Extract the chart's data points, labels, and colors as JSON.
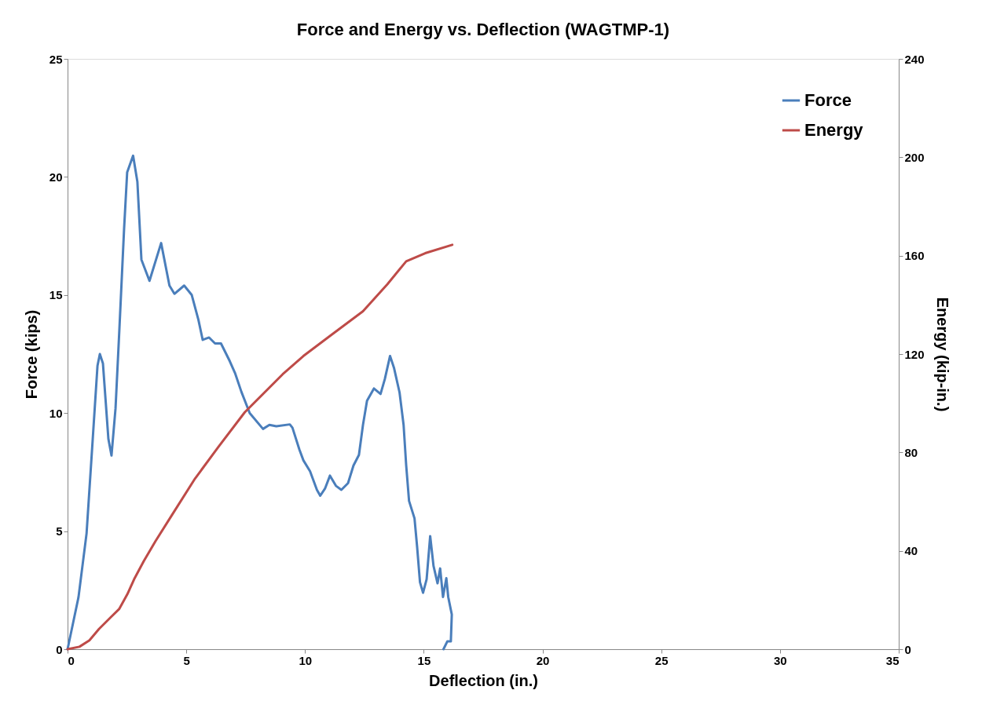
{
  "chart_data": {
    "type": "line",
    "title": "Force and Energy vs. Deflection (WAGTMP-1)",
    "xlabel": "Deflection (in.)",
    "ylabel": "Force (kips)",
    "y2label": "Energy (kip-in.)",
    "xlim": [
      0,
      35
    ],
    "xticks": [
      0,
      5,
      10,
      15,
      20,
      25,
      30,
      35
    ],
    "ylim": [
      0,
      25
    ],
    "yticks": [
      0,
      5,
      10,
      15,
      20,
      25
    ],
    "y2lim": [
      0,
      240
    ],
    "y2ticks": [
      0,
      40,
      80,
      120,
      160,
      200,
      240
    ],
    "grid": false,
    "legend": "top right",
    "series": [
      {
        "name": "Force",
        "color": "#4a7ebb",
        "x": [
          0,
          0.46,
          0.8,
          1.06,
          1.26,
          1.36,
          1.49,
          1.72,
          1.85,
          2.02,
          2.18,
          2.38,
          2.51,
          2.76,
          2.94,
          3.11,
          3.45,
          3.94,
          4.29,
          4.5,
          4.91,
          5.23,
          5.51,
          5.69,
          5.96,
          6.21,
          6.46,
          6.83,
          7.05,
          7.32,
          7.67,
          8.23,
          8.5,
          8.79,
          9.36,
          9.47,
          9.76,
          9.93,
          10.21,
          10.5,
          10.64,
          10.84,
          11.05,
          11.3,
          11.53,
          11.81,
          12.04,
          12.27,
          12.44,
          12.61,
          12.9,
          13.18,
          13.36,
          13.58,
          13.75,
          13.98,
          14.15,
          14.26,
          14.38,
          14.61,
          14.72,
          14.84,
          14.97,
          15.12,
          15.27,
          15.41,
          15.58,
          15.69,
          15.81,
          15.95,
          16.03,
          16.18,
          16.14,
          15.99,
          15.83
        ],
        "values": [
          0,
          2.2,
          4.9,
          8.9,
          12.0,
          12.5,
          12.1,
          8.9,
          8.2,
          10.2,
          13.5,
          17.8,
          20.2,
          20.9,
          19.8,
          16.5,
          15.6,
          17.2,
          15.4,
          15.05,
          15.4,
          15.0,
          13.95,
          13.1,
          13.2,
          12.95,
          12.95,
          12.2,
          11.7,
          10.9,
          10.0,
          9.33,
          9.5,
          9.44,
          9.52,
          9.38,
          8.46,
          8.0,
          7.54,
          6.75,
          6.5,
          6.8,
          7.35,
          6.92,
          6.75,
          7.03,
          7.78,
          8.23,
          9.5,
          10.52,
          11.04,
          10.81,
          11.44,
          12.42,
          11.9,
          10.87,
          9.5,
          7.78,
          6.28,
          5.54,
          4.33,
          2.84,
          2.39,
          2.96,
          4.79,
          3.53,
          2.79,
          3.42,
          2.21,
          3.01,
          2.21,
          1.47,
          0.33,
          0.33,
          0
        ]
      },
      {
        "name": "Energy",
        "color": "#be4b48",
        "axis": "y2",
        "x": [
          0,
          0.5,
          0.92,
          1.33,
          1.82,
          2.17,
          2.52,
          2.8,
          3.21,
          3.7,
          4.4,
          5.37,
          6.35,
          7.46,
          9.06,
          9.93,
          11.07,
          12.44,
          13.47,
          14.26,
          15.06,
          16.2
        ],
        "values": [
          0,
          1.0,
          3.6,
          8.3,
          13.0,
          16.3,
          22.4,
          28.4,
          35.8,
          43.9,
          54.6,
          69.4,
          82.2,
          96.3,
          111.8,
          119.2,
          127.5,
          137.4,
          148.4,
          157.7,
          161.0,
          164.4
        ]
      }
    ]
  }
}
